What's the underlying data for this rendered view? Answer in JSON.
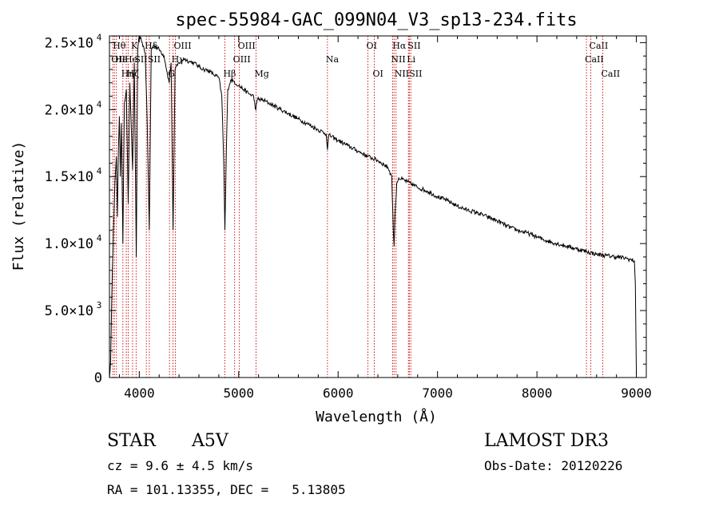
{
  "chart_data": {
    "type": "line",
    "title": "spec-55984-GAC_099N04_V3_sp13-234.fits",
    "xlabel": "Wavelength (Å)",
    "ylabel": "Flux (relative)",
    "xlim": [
      3700,
      9100
    ],
    "ylim": [
      0,
      25500
    ],
    "x_ticks": [
      {
        "value": 4000,
        "label": "4000"
      },
      {
        "value": 5000,
        "label": "5000"
      },
      {
        "value": 6000,
        "label": "6000"
      },
      {
        "value": 7000,
        "label": "7000"
      },
      {
        "value": 8000,
        "label": "8000"
      },
      {
        "value": 9000,
        "label": "9000"
      }
    ],
    "y_ticks": [
      {
        "value": 0,
        "mantissa": "0",
        "exponent": ""
      },
      {
        "value": 5000,
        "mantissa": "5.0×10",
        "exponent": "3"
      },
      {
        "value": 10000,
        "mantissa": "1.0×10",
        "exponent": "4"
      },
      {
        "value": 15000,
        "mantissa": "1.5×10",
        "exponent": "4"
      },
      {
        "value": 20000,
        "mantissa": "2.0×10",
        "exponent": "4"
      },
      {
        "value": 25000,
        "mantissa": "2.5×10",
        "exponent": "4"
      }
    ],
    "series": [
      {
        "name": "spectrum",
        "color": "#000000",
        "points": [
          [
            3700,
            0
          ],
          [
            3712,
            1200
          ],
          [
            3725,
            6500
          ],
          [
            3740,
            11000
          ],
          [
            3755,
            14500
          ],
          [
            3770,
            16500
          ],
          [
            3780,
            12000
          ],
          [
            3790,
            17000
          ],
          [
            3800,
            19500
          ],
          [
            3810,
            15000
          ],
          [
            3820,
            19000
          ],
          [
            3835,
            10000
          ],
          [
            3850,
            20500
          ],
          [
            3870,
            21500
          ],
          [
            3889,
            13000
          ],
          [
            3905,
            22000
          ],
          [
            3933,
            15500
          ],
          [
            3950,
            23500
          ],
          [
            3970,
            9000
          ],
          [
            3985,
            24500
          ],
          [
            4000,
            25500
          ],
          [
            4030,
            25000
          ],
          [
            4060,
            24200
          ],
          [
            4080,
            19000
          ],
          [
            4101,
            11000
          ],
          [
            4120,
            24500
          ],
          [
            4150,
            24800
          ],
          [
            4200,
            24500
          ],
          [
            4250,
            24000
          ],
          [
            4300,
            22000
          ],
          [
            4320,
            23500
          ],
          [
            4340,
            11000
          ],
          [
            4360,
            23000
          ],
          [
            4400,
            23500
          ],
          [
            4450,
            23800
          ],
          [
            4500,
            23600
          ],
          [
            4550,
            23500
          ],
          [
            4600,
            23200
          ],
          [
            4650,
            23000
          ],
          [
            4700,
            22900
          ],
          [
            4750,
            22600
          ],
          [
            4800,
            22400
          ],
          [
            4830,
            21000
          ],
          [
            4850,
            16000
          ],
          [
            4861,
            11000
          ],
          [
            4875,
            16500
          ],
          [
            4890,
            21500
          ],
          [
            4920,
            22200
          ],
          [
            4950,
            22100
          ],
          [
            5000,
            21800
          ],
          [
            5050,
            21500
          ],
          [
            5100,
            21200
          ],
          [
            5150,
            21000
          ],
          [
            5172,
            20000
          ],
          [
            5190,
            20800
          ],
          [
            5250,
            20700
          ],
          [
            5300,
            20500
          ],
          [
            5400,
            20100
          ],
          [
            5500,
            19700
          ],
          [
            5600,
            19300
          ],
          [
            5700,
            18900
          ],
          [
            5800,
            18500
          ],
          [
            5880,
            18200
          ],
          [
            5893,
            17000
          ],
          [
            5905,
            18100
          ],
          [
            6000,
            17700
          ],
          [
            6100,
            17300
          ],
          [
            6200,
            16900
          ],
          [
            6300,
            16500
          ],
          [
            6400,
            16200
          ],
          [
            6500,
            15700
          ],
          [
            6540,
            15000
          ],
          [
            6555,
            11000
          ],
          [
            6563,
            9800
          ],
          [
            6572,
            12000
          ],
          [
            6590,
            14500
          ],
          [
            6610,
            14900
          ],
          [
            6700,
            14600
          ],
          [
            6800,
            14200
          ],
          [
            6900,
            13900
          ],
          [
            7000,
            13500
          ],
          [
            7100,
            13200
          ],
          [
            7200,
            12800
          ],
          [
            7300,
            12500
          ],
          [
            7400,
            12300
          ],
          [
            7500,
            12000
          ],
          [
            7600,
            11700
          ],
          [
            7700,
            11300
          ],
          [
            7800,
            11000
          ],
          [
            7900,
            10800
          ],
          [
            8000,
            10500
          ],
          [
            8100,
            10200
          ],
          [
            8200,
            10000
          ],
          [
            8300,
            9800
          ],
          [
            8400,
            9600
          ],
          [
            8500,
            9400
          ],
          [
            8600,
            9200
          ],
          [
            8700,
            9100
          ],
          [
            8800,
            9000
          ],
          [
            8900,
            8900
          ],
          [
            8980,
            8700
          ],
          [
            8990,
            7000
          ],
          [
            9000,
            200
          ]
        ]
      }
    ],
    "line_markers": [
      {
        "wavelength": 3734,
        "label": "OII",
        "row": 2,
        "anchor": "start"
      },
      {
        "wavelength": 3750,
        "label": "Hθ",
        "row": 1,
        "anchor": "start"
      },
      {
        "wavelength": 3770,
        "label": "He",
        "row": 2,
        "anchor": "start"
      },
      {
        "wavelength": 3835,
        "label": "Hη",
        "row": 3,
        "anchor": "start"
      },
      {
        "wavelength": 3869,
        "label": "He",
        "row": 2,
        "anchor": "start"
      },
      {
        "wavelength": 3889,
        "label": "Hζ",
        "row": 3,
        "anchor": "start"
      },
      {
        "wavelength": 3933,
        "label": "K",
        "row": 1,
        "anchor": "start"
      },
      {
        "wavelength": 3968,
        "label": "SII",
        "row": 2,
        "anchor": "start"
      },
      {
        "wavelength": 4071,
        "label": "Hδ",
        "row": 1,
        "anchor": "start"
      },
      {
        "wavelength": 4101,
        "label": "SII",
        "row": 2,
        "anchor": "start"
      },
      {
        "wavelength": 4304,
        "label": "G",
        "row": 3,
        "anchor": "start"
      },
      {
        "wavelength": 4340,
        "label": "Hγ",
        "row": 2,
        "anchor": "start"
      },
      {
        "wavelength": 4363,
        "label": "OIII",
        "row": 1,
        "anchor": "start"
      },
      {
        "wavelength": 4861,
        "label": "Hβ",
        "row": 3,
        "anchor": "start"
      },
      {
        "wavelength": 4959,
        "label": "OIII",
        "row": 2,
        "anchor": "start"
      },
      {
        "wavelength": 5007,
        "label": "OIII",
        "row": 1,
        "anchor": "start"
      },
      {
        "wavelength": 5175,
        "label": "Mg",
        "row": 3,
        "anchor": "start"
      },
      {
        "wavelength": 5893,
        "label": "Na",
        "row": 2,
        "anchor": "start"
      },
      {
        "wavelength": 6300,
        "label": "OI",
        "row": 1,
        "anchor": "start"
      },
      {
        "wavelength": 6364,
        "label": "OI",
        "row": 3,
        "anchor": "start"
      },
      {
        "wavelength": 6548,
        "label": "NII",
        "row": 2,
        "anchor": "start"
      },
      {
        "wavelength": 6563,
        "label": "Hα",
        "row": 1,
        "anchor": "start"
      },
      {
        "wavelength": 6583,
        "label": "NII",
        "row": 3,
        "anchor": "start"
      },
      {
        "wavelength": 6707,
        "label": "Li",
        "row": 2,
        "anchor": "start"
      },
      {
        "wavelength": 6716,
        "label": "SII",
        "row": 1,
        "anchor": "start"
      },
      {
        "wavelength": 6731,
        "label": "SII",
        "row": 3,
        "anchor": "start"
      },
      {
        "wavelength": 8498,
        "label": "CaII",
        "row": 2,
        "anchor": "start"
      },
      {
        "wavelength": 8542,
        "label": "CaII",
        "row": 1,
        "anchor": "start"
      },
      {
        "wavelength": 8662,
        "label": "CaII",
        "row": 3,
        "anchor": "start"
      }
    ],
    "marker_color": "#cc0000",
    "grid": false
  },
  "info": {
    "object_class": "STAR",
    "subclass": "A5V",
    "survey": "LAMOST DR3",
    "redshift": "cz = 9.6 ± 4.5 km/s",
    "obs_date": "Obs-Date: 20120226",
    "coordinates": "RA = 101.13355, DEC =   5.13805"
  }
}
